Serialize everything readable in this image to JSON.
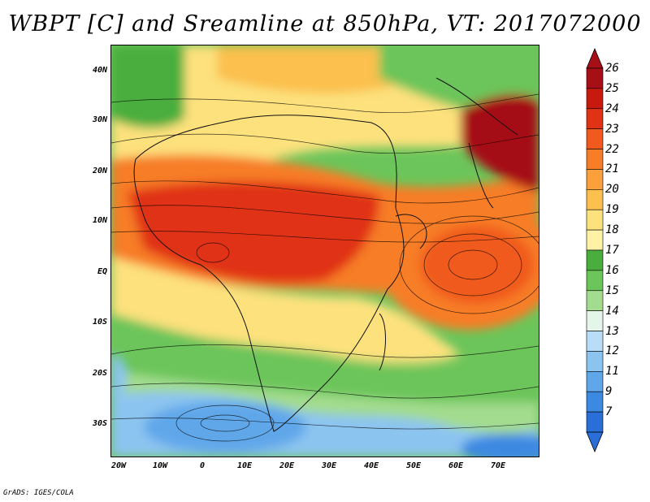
{
  "title": "WBPT [C] and Sreamline at 850hPa, VT: 2017072000",
  "footer": "GrADS: IGES/COLA",
  "map": {
    "lat_labels": [
      "40N",
      "30N",
      "20N",
      "10N",
      "EQ",
      "10S",
      "20S",
      "30S"
    ],
    "lon_labels": [
      "20W",
      "10W",
      "0",
      "10E",
      "20E",
      "30E",
      "40E",
      "50E",
      "60E",
      "70E"
    ],
    "lon_range": [
      -22,
      80
    ],
    "lat_range": [
      -37,
      45
    ]
  },
  "colorbar": {
    "labels": [
      "26",
      "25",
      "24",
      "23",
      "22",
      "21",
      "20",
      "19",
      "18",
      "17",
      "16",
      "15",
      "14",
      "13",
      "12",
      "11",
      "9",
      "7"
    ],
    "colors": [
      "#a50f15",
      "#c8190f",
      "#e03214",
      "#f05a1e",
      "#f77d28",
      "#fba03c",
      "#fbc04e",
      "#fde17d",
      "#fff1a6",
      "#4aae3e",
      "#6cc55a",
      "#a3dc8e",
      "#e4f6ea",
      "#b9ddf7",
      "#8cc4f0",
      "#60a7ea",
      "#3c89e2",
      "#2a6ed8"
    ]
  }
}
